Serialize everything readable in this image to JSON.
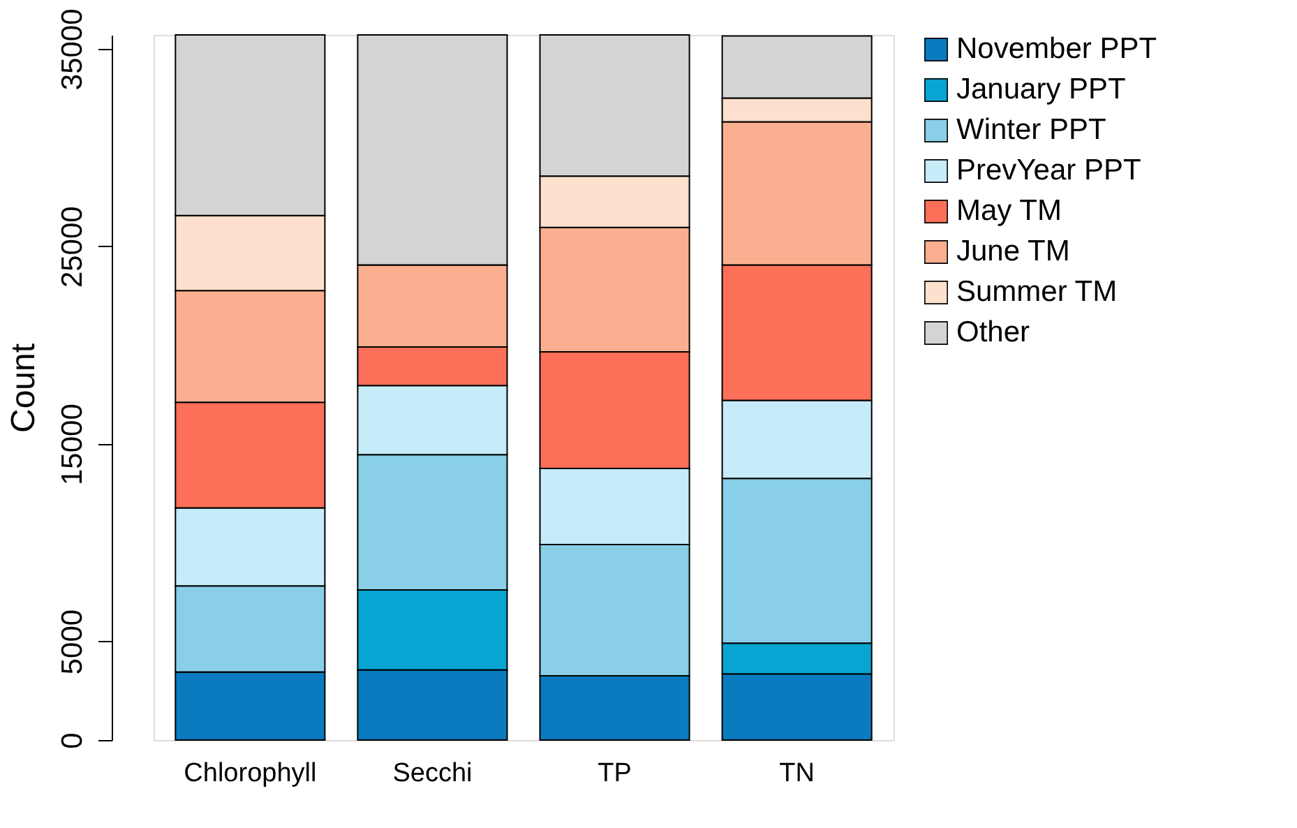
{
  "chart_data": {
    "type": "bar",
    "stacked": true,
    "ylabel": "Count",
    "categories": [
      "Chlorophyll",
      "Secchi",
      "TP",
      "TN"
    ],
    "series": [
      {
        "name": "November PPT",
        "color": "#0a7bbf",
        "values": [
          3450,
          3550,
          3250,
          3350
        ]
      },
      {
        "name": "January PPT",
        "color": "#08a5d2",
        "values": [
          0,
          4050,
          0,
          1550
        ]
      },
      {
        "name": "Winter PPT",
        "color": "#88cfe7",
        "values": [
          4350,
          6850,
          6650,
          8350
        ]
      },
      {
        "name": "PrevYear PPT",
        "color": "#c6ebf9",
        "values": [
          3950,
          3500,
          3850,
          3950
        ]
      },
      {
        "name": "May TM",
        "color": "#fc6f58",
        "values": [
          5350,
          1950,
          5900,
          6850
        ]
      },
      {
        "name": "June TM",
        "color": "#fab090",
        "values": [
          5650,
          4150,
          6300,
          7250
        ]
      },
      {
        "name": "Summer TM",
        "color": "#fde0cd",
        "values": [
          3800,
          0,
          2600,
          1200
        ]
      },
      {
        "name": "Other",
        "color": "#d4d4d4",
        "values": [
          9150,
          11650,
          7150,
          3150
        ]
      }
    ],
    "ylim": [
      0,
      35700
    ],
    "yticks": [
      0,
      5000,
      15000,
      25000,
      35000
    ],
    "grid": false,
    "legend": "right"
  }
}
